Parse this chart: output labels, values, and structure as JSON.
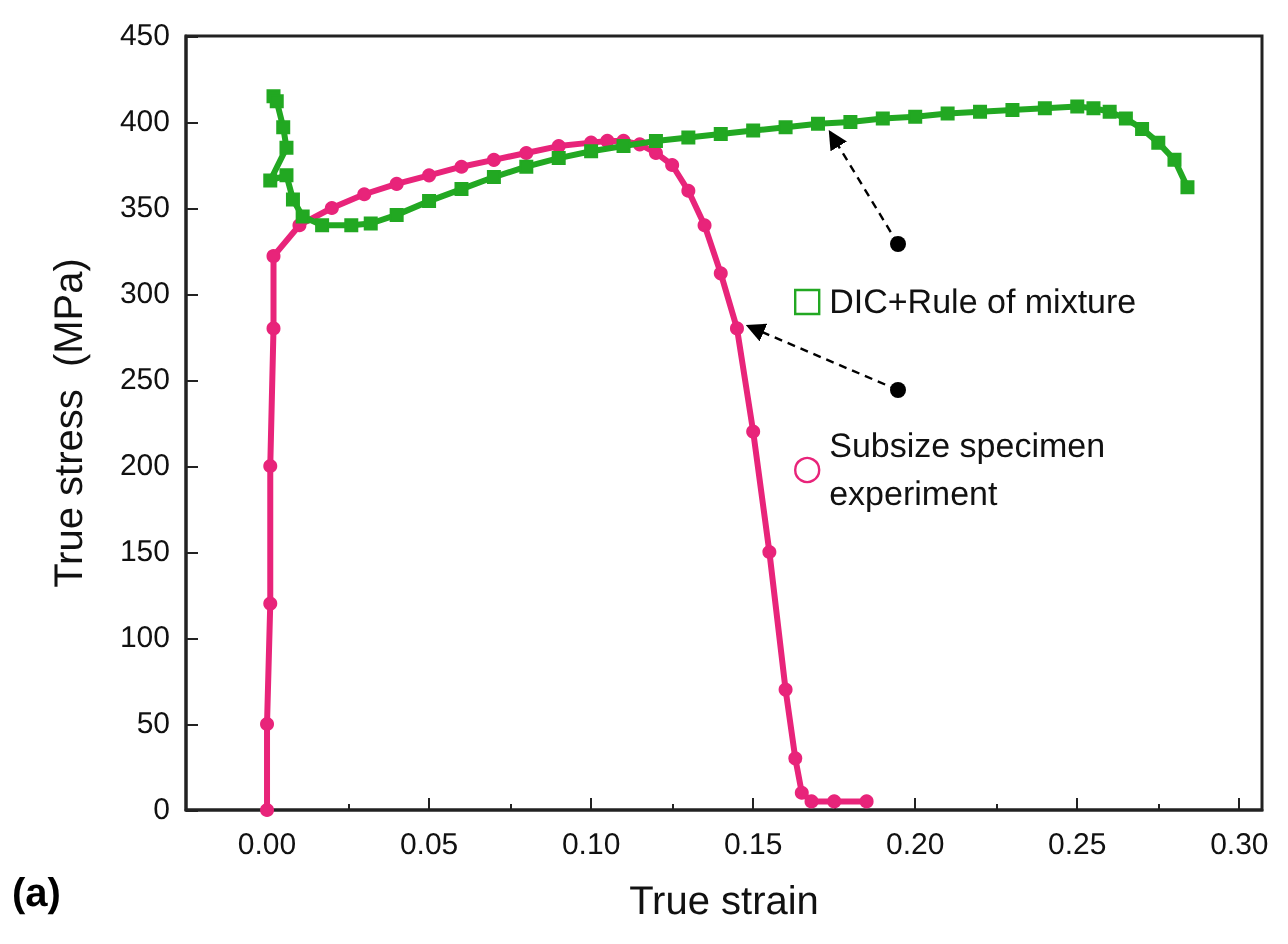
{
  "chart_data": {
    "type": "line",
    "xlabel": "True strain",
    "ylabel": "True stress  (MPa)",
    "annotations": [
      "(a)"
    ],
    "xlim": [
      -0.025,
      0.307
    ],
    "ylim": [
      0,
      450
    ],
    "xticks": [
      {
        "value": 0,
        "label": "0.00"
      },
      {
        "value": 0.05,
        "label": "0.05"
      },
      {
        "value": 0.1,
        "label": "0.10"
      },
      {
        "value": 0.15,
        "label": "0.15"
      },
      {
        "value": 0.2,
        "label": "0.20"
      },
      {
        "value": 0.25,
        "label": "0.25"
      },
      {
        "value": 0.3,
        "label": "0.30"
      }
    ],
    "yticks": [
      0,
      50,
      100,
      150,
      200,
      250,
      300,
      350,
      400,
      450
    ],
    "grid": false,
    "legend": "right",
    "series": [
      {
        "name": "DIC+Rule of mixture",
        "color": "#22a822",
        "marker": "square",
        "x": [
          0.002,
          0.003,
          0.005,
          0.006,
          0.001,
          0.006,
          0.008,
          0.011,
          0.017,
          0.026,
          0.032,
          0.04,
          0.05,
          0.06,
          0.07,
          0.08,
          0.09,
          0.1,
          0.11,
          0.12,
          0.13,
          0.14,
          0.15,
          0.16,
          0.17,
          0.18,
          0.19,
          0.2,
          0.21,
          0.22,
          0.23,
          0.24,
          0.25,
          0.255,
          0.26,
          0.265,
          0.27,
          0.275,
          0.28,
          0.284
        ],
        "values": [
          415,
          412,
          397,
          385,
          366,
          369,
          355,
          345,
          340,
          340,
          341,
          346,
          354,
          361,
          368,
          374,
          379,
          383,
          386,
          389,
          391,
          393,
          395,
          397,
          399,
          400,
          402,
          403,
          405,
          406,
          407,
          408,
          409,
          408,
          406,
          402,
          396,
          388,
          378,
          362
        ]
      },
      {
        "name": "Subsize specimen experiment",
        "color": "#e8247a",
        "marker": "circle",
        "x": [
          0,
          0,
          0.001,
          0.001,
          0.002,
          0.002,
          0.01,
          0.02,
          0.03,
          0.04,
          0.05,
          0.06,
          0.07,
          0.08,
          0.09,
          0.1,
          0.105,
          0.11,
          0.115,
          0.12,
          0.125,
          0.13,
          0.135,
          0.14,
          0.145,
          0.15,
          0.155,
          0.16,
          0.163,
          0.165,
          0.168,
          0.175,
          0.185
        ],
        "values": [
          0,
          50,
          120,
          200,
          280,
          322,
          340,
          350,
          358,
          364,
          369,
          374,
          378,
          382,
          386,
          388,
          389,
          389,
          387,
          382,
          375,
          360,
          340,
          312,
          280,
          220,
          150,
          70,
          30,
          10,
          5,
          5,
          5
        ]
      }
    ]
  }
}
